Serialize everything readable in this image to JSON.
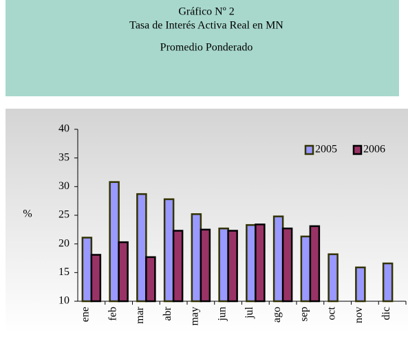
{
  "header": {
    "lines": [
      "Gráfico Nº 2",
      "Tasa de Interés Activa Real en MN",
      "Promedio Ponderado"
    ]
  },
  "chart_data": {
    "type": "bar",
    "y_label": "%",
    "categories": [
      "ene",
      "feb",
      "mar",
      "abr",
      "may",
      "jun",
      "jul",
      "ago",
      "sep",
      "oct",
      "nov",
      "dic"
    ],
    "series": [
      {
        "name": "2005",
        "color": "#9999ff",
        "values": [
          21.1,
          30.8,
          28.7,
          27.8,
          25.2,
          22.7,
          23.3,
          24.8,
          21.3,
          18.2,
          15.9,
          16.6
        ]
      },
      {
        "name": "2006",
        "color": "#993366",
        "values": [
          18.1,
          20.3,
          17.7,
          22.3,
          22.5,
          22.3,
          23.4,
          22.7,
          23.1,
          null,
          null,
          null
        ]
      }
    ],
    "ylim": [
      10,
      40
    ],
    "yticks": [
      10,
      15,
      20,
      25,
      30,
      35,
      40
    ],
    "legend": "top-right"
  }
}
